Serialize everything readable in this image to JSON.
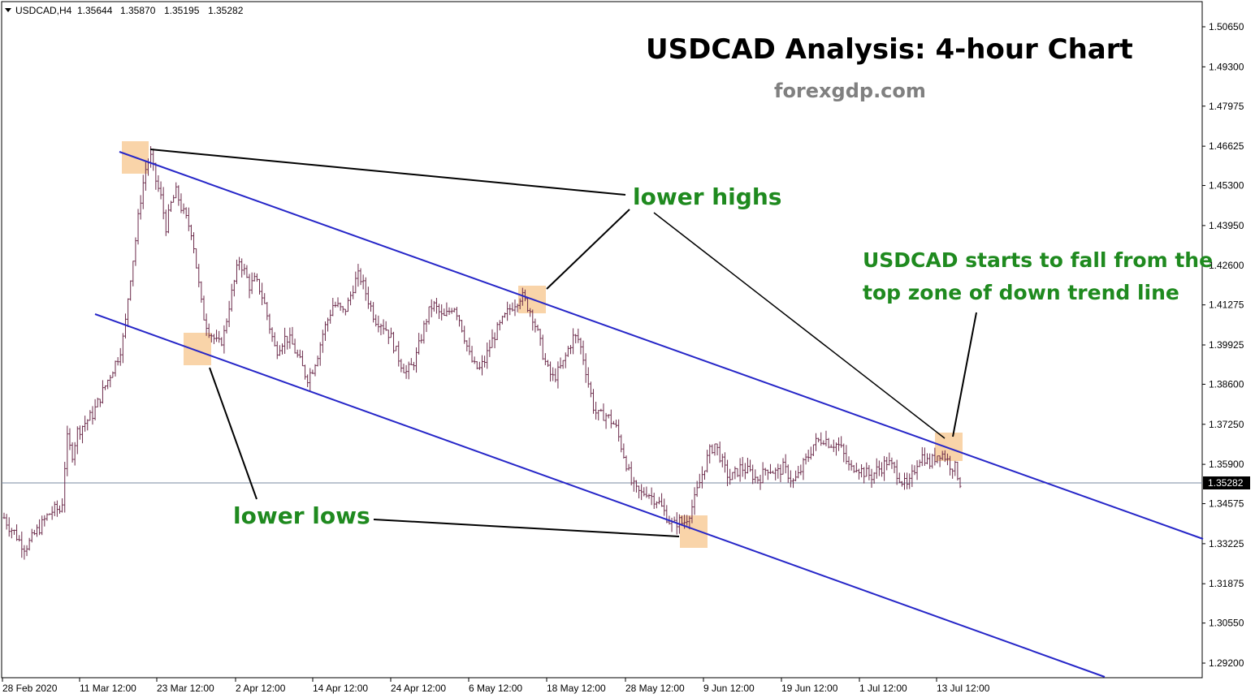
{
  "header": {
    "symbol": "USDCAD,H4",
    "open": "1.35644",
    "high": "1.35870",
    "low": "1.35195",
    "close": "1.35282"
  },
  "title": "USDCAD Analysis: 4-hour Chart",
  "subtitle": "forexgdp.com",
  "current_price_label": "1.35282",
  "annotations": {
    "lower_highs": "lower highs",
    "lower_lows": "lower lows",
    "note_line1": "USDCAD starts to fall from the",
    "note_line2": "top zone of down trend line"
  },
  "colors": {
    "trendline": "#2626c8",
    "highlight": "#f7c58c",
    "annotation_text": "#1f8a1f",
    "bar": "#6b2a4a",
    "price_line": "#7a8aa0",
    "price_tag_bg": "#000000"
  },
  "chart_data": {
    "type": "ohlc-bar",
    "timeframe": "H4",
    "title": "USDCAD Analysis: 4-hour Chart",
    "y_ticks": [
      "1.50650",
      "1.49300",
      "1.47975",
      "1.46625",
      "1.45300",
      "1.43950",
      "1.42600",
      "1.41275",
      "1.39925",
      "1.38600",
      "1.37250",
      "1.35900",
      "1.34575",
      "1.33225",
      "1.31875",
      "1.30550",
      "1.29200"
    ],
    "ylim": [
      1.2855,
      1.5115
    ],
    "x_tick_labels": [
      "28 Feb 2020",
      "11 Mar 12:00",
      "23 Mar 12:00",
      "2 Apr 12:00",
      "14 Apr 12:00",
      "24 Apr 12:00",
      "6 May 12:00",
      "18 May 12:00",
      "28 May 12:00",
      "9 Jun 12:00",
      "19 Jun 12:00",
      "1 Jul 12:00",
      "13 Jul 12:00"
    ],
    "current_price": 1.35282,
    "close_series": [
      1.341,
      1.338,
      1.336,
      1.333,
      1.331,
      1.333,
      1.336,
      1.338,
      1.341,
      1.343,
      1.344,
      1.343,
      1.368,
      1.362,
      1.37,
      1.372,
      1.374,
      1.376,
      1.38,
      1.384,
      1.388,
      1.392,
      1.396,
      1.403,
      1.42,
      1.432,
      1.447,
      1.458,
      1.463,
      1.455,
      1.449,
      1.439,
      1.447,
      1.451,
      1.445,
      1.441,
      1.437,
      1.423,
      1.41,
      1.405,
      1.402,
      1.399,
      1.402,
      1.412,
      1.42,
      1.428,
      1.424,
      1.419,
      1.421,
      1.418,
      1.412,
      1.404,
      1.397,
      1.4,
      1.402,
      1.4,
      1.396,
      1.392,
      1.388,
      1.391,
      1.396,
      1.403,
      1.408,
      1.413,
      1.412,
      1.41,
      1.414,
      1.42,
      1.423,
      1.418,
      1.413,
      1.408,
      1.407,
      1.405,
      1.402,
      1.397,
      1.393,
      1.39,
      1.392,
      1.396,
      1.403,
      1.409,
      1.413,
      1.411,
      1.408,
      1.41,
      1.413,
      1.409,
      1.403,
      1.396,
      1.392,
      1.391,
      1.394,
      1.399,
      1.403,
      1.406,
      1.409,
      1.412,
      1.414,
      1.416,
      1.413,
      1.41,
      1.404,
      1.397,
      1.391,
      1.388,
      1.39,
      1.393,
      1.398,
      1.402,
      1.401,
      1.394,
      1.385,
      1.377,
      1.375,
      1.376,
      1.374,
      1.372,
      1.366,
      1.36,
      1.353,
      1.35,
      1.349,
      1.35,
      1.348,
      1.347,
      1.344,
      1.341,
      1.338,
      1.34,
      1.339,
      1.342,
      1.346,
      1.352,
      1.358,
      1.363,
      1.366,
      1.362,
      1.357,
      1.354,
      1.356,
      1.358,
      1.357,
      1.356,
      1.354,
      1.355,
      1.358,
      1.357,
      1.356,
      1.358,
      1.356,
      1.353,
      1.355,
      1.359,
      1.362,
      1.366,
      1.367,
      1.368,
      1.366,
      1.366,
      1.365,
      1.361,
      1.357,
      1.359,
      1.357,
      1.356,
      1.355,
      1.357,
      1.358,
      1.36,
      1.358,
      1.356,
      1.353,
      1.351,
      1.356,
      1.361,
      1.362,
      1.359,
      1.361,
      1.363,
      1.362,
      1.359,
      1.358,
      1.353
    ]
  }
}
